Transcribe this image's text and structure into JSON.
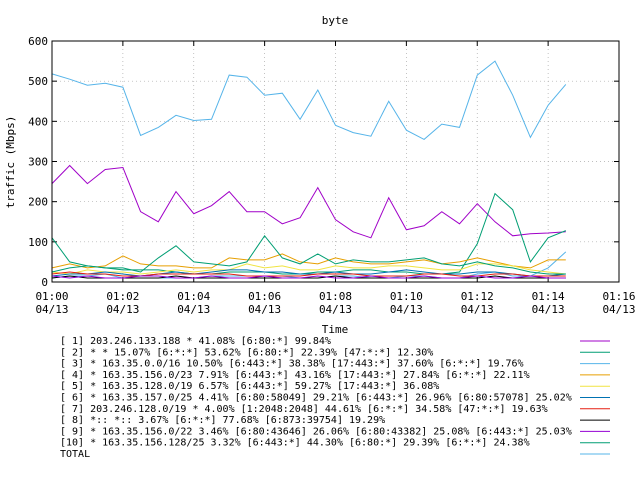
{
  "chart_data": {
    "type": "line",
    "title": "byte",
    "xlabel": "Time",
    "ylabel": "traffic (Mbps)",
    "ylim": [
      0,
      600
    ],
    "yticks": [
      0,
      100,
      200,
      300,
      400,
      500,
      600
    ],
    "xlim": [
      0,
      16
    ],
    "xticks": [
      {
        "value": 0,
        "time": "01:00",
        "date": "04/13"
      },
      {
        "value": 2,
        "time": "01:02",
        "date": "04/13"
      },
      {
        "value": 4,
        "time": "01:04",
        "date": "04/13"
      },
      {
        "value": 6,
        "time": "01:06",
        "date": "04/13"
      },
      {
        "value": 8,
        "time": "01:08",
        "date": "04/13"
      },
      {
        "value": 10,
        "time": "01:10",
        "date": "04/13"
      },
      {
        "value": 12,
        "time": "01:12",
        "date": "04/13"
      },
      {
        "value": 14,
        "time": "01:14",
        "date": "04/13"
      },
      {
        "value": 16,
        "time": "01:16",
        "date": "04/13"
      }
    ],
    "x": [
      0,
      0.5,
      1,
      1.5,
      2,
      2.5,
      3,
      3.5,
      4,
      4.5,
      5,
      5.5,
      6,
      6.5,
      7,
      7.5,
      8,
      8.5,
      9,
      9.5,
      10,
      10.5,
      11,
      11.5,
      12,
      12.5,
      13,
      13.5,
      14,
      14.5
    ],
    "series": [
      {
        "name": "[ 1] 203.246.133.188 * 41.08%  [6:80:*] 99.84%",
        "color": "#a000c8",
        "values": [
          245,
          290,
          245,
          280,
          285,
          175,
          150,
          225,
          170,
          190,
          225,
          175,
          175,
          145,
          160,
          235,
          155,
          125,
          110,
          210,
          130,
          140,
          175,
          145,
          195,
          150,
          115,
          120,
          122,
          125
        ]
      },
      {
        "name": "[ 2] * * 15.07%  [6:*:*] 53.62% [6:80:*] 22.39% [47:*:*] 12.30%",
        "color": "#009e73",
        "values": [
          110,
          50,
          40,
          35,
          30,
          30,
          30,
          25,
          20,
          20,
          25,
          25,
          25,
          20,
          20,
          25,
          25,
          30,
          30,
          25,
          25,
          20,
          20,
          25,
          95,
          220,
          180,
          50,
          110,
          128
        ]
      },
      {
        "name": "[ 3] * 163.35.0.0/16 10.50%  [6:443:*] 38.38% [17:443:*] 37.60% [6:*:*] 19.76%",
        "color": "#56b4e9",
        "values": [
          10,
          15,
          15,
          20,
          10,
          10,
          10,
          10,
          10,
          15,
          15,
          15,
          15,
          15,
          10,
          10,
          15,
          15,
          10,
          10,
          15,
          15,
          10,
          10,
          20,
          25,
          15,
          15,
          35,
          75
        ]
      },
      {
        "name": "[ 4] * 163.35.156.0/23 7.91%  [6:443:*] 43.16% [17:443:*] 27.84% [6:*:*] 22.11%",
        "color": "#e69f00",
        "values": [
          35,
          45,
          35,
          40,
          65,
          45,
          40,
          40,
          35,
          35,
          60,
          55,
          55,
          70,
          50,
          45,
          60,
          50,
          45,
          45,
          50,
          55,
          45,
          50,
          60,
          50,
          40,
          35,
          55,
          55
        ]
      },
      {
        "name": "[ 5] * 163.35.128.0/19 6.57%  [6:443:*] 59.27% [17:443:*] 36.08%",
        "color": "#f0e442",
        "values": [
          25,
          20,
          30,
          25,
          25,
          20,
          25,
          30,
          25,
          30,
          30,
          45,
          35,
          40,
          30,
          30,
          40,
          35,
          35,
          40,
          40,
          35,
          30,
          30,
          45,
          45,
          40,
          30,
          25,
          20
        ]
      },
      {
        "name": "[ 6] * 163.35.157.0/25 4.41%  [6:80:58049] 29.21% [6:443:*] 26.96% [6:80:57078] 25.02%",
        "color": "#0072b2",
        "values": [
          15,
          20,
          20,
          25,
          20,
          15,
          20,
          25,
          20,
          25,
          30,
          30,
          25,
          25,
          20,
          20,
          25,
          20,
          20,
          25,
          30,
          25,
          20,
          20,
          25,
          25,
          20,
          15,
          15,
          20
        ]
      },
      {
        "name": "[ 7] 203.246.128.0/19 * 4.00%  [1:2048:2048] 44.61% [6:*:*] 34.58% [47:*:*] 19.63%",
        "color": "#e51e10",
        "values": [
          20,
          25,
          20,
          20,
          15,
          15,
          20,
          20,
          20,
          20,
          20,
          15,
          15,
          15,
          15,
          20,
          20,
          20,
          15,
          15,
          15,
          20,
          20,
          15,
          15,
          20,
          20,
          15,
          15,
          15
        ]
      },
      {
        "name": "[ 8] *:: *:: 3.67%  [6:*:*] 77.68% [6:873:39754] 19.29%",
        "color": "#000000",
        "values": [
          10,
          15,
          10,
          10,
          10,
          10,
          10,
          15,
          10,
          10,
          10,
          10,
          10,
          10,
          10,
          10,
          15,
          10,
          10,
          10,
          10,
          10,
          10,
          10,
          10,
          15,
          10,
          10,
          10,
          10
        ]
      },
      {
        "name": "[ 9] * 163.35.156.0/22 3.46%  [6:80:43646] 26.06% [6:80:43382] 25.08% [6:443:*] 25.03%",
        "color": "#9400d3",
        "values": [
          15,
          10,
          15,
          10,
          10,
          15,
          15,
          10,
          10,
          15,
          10,
          10,
          15,
          10,
          10,
          15,
          10,
          10,
          15,
          10,
          10,
          15,
          10,
          10,
          15,
          10,
          10,
          15,
          10,
          10
        ]
      },
      {
        "name": "[10] * 163.35.156.128/25 3.32%  [6:443:*] 44.30% [6:80:*] 29.39% [6:*:*] 24.38%",
        "color": "#009e73",
        "values": [
          25,
          35,
          40,
          35,
          35,
          25,
          60,
          90,
          50,
          45,
          40,
          50,
          115,
          60,
          45,
          70,
          45,
          55,
          50,
          50,
          55,
          60,
          45,
          40,
          50,
          40,
          35,
          25,
          20,
          20
        ]
      },
      {
        "name": "TOTAL",
        "color": "#56b4e9",
        "values": [
          518,
          505,
          490,
          495,
          485,
          365,
          385,
          415,
          402,
          405,
          515,
          510,
          465,
          470,
          405,
          478,
          390,
          372,
          363,
          450,
          378,
          355,
          393,
          385,
          515,
          550,
          465,
          360,
          440,
          492
        ]
      }
    ]
  }
}
